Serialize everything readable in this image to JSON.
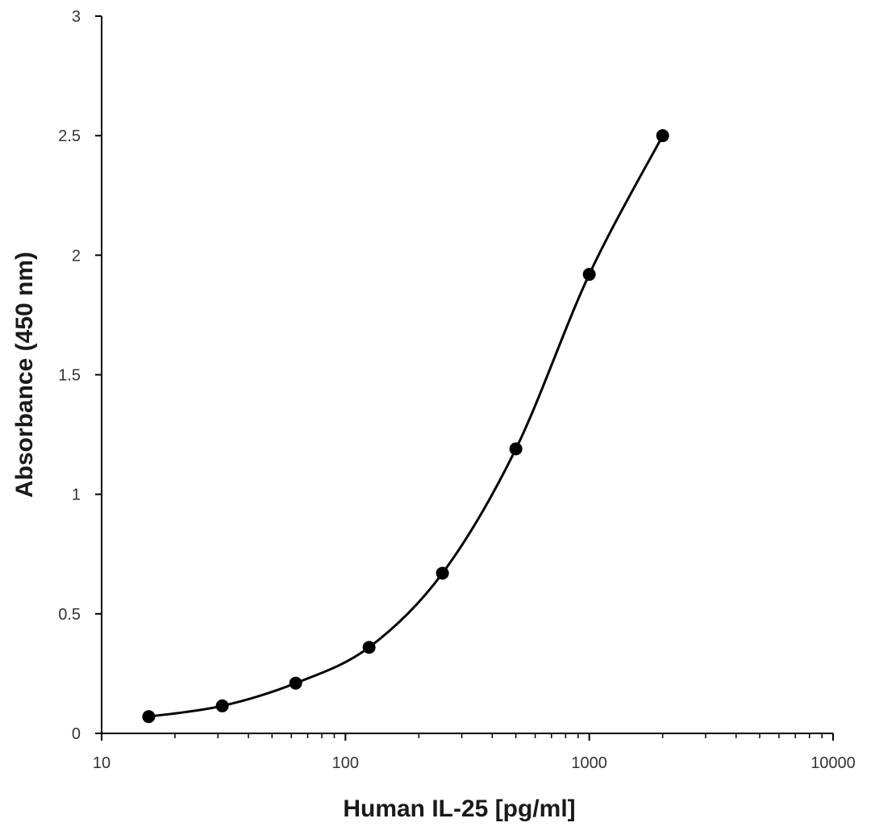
{
  "chart_data": {
    "type": "scatter",
    "title": "",
    "xlabel": "Human IL-25 [pg/ml]",
    "ylabel": "Absorbance (450 nm)",
    "xscale": "log",
    "xlim": [
      10,
      10000
    ],
    "ylim": [
      0,
      3
    ],
    "x_ticks": [
      "10",
      "100",
      "1000",
      "10000"
    ],
    "y_ticks": [
      "0",
      "0.5",
      "1",
      "1.5",
      "2",
      "2.5",
      "3"
    ],
    "grid": false,
    "legend": "none",
    "line": "smoothed",
    "series": [
      {
        "x": [
          15.6,
          31.25,
          62.5,
          125,
          250,
          500,
          1000,
          2000
        ],
        "y": [
          0.07,
          0.115,
          0.21,
          0.36,
          0.67,
          1.19,
          1.92,
          2.5
        ],
        "color": "#000000"
      }
    ]
  }
}
